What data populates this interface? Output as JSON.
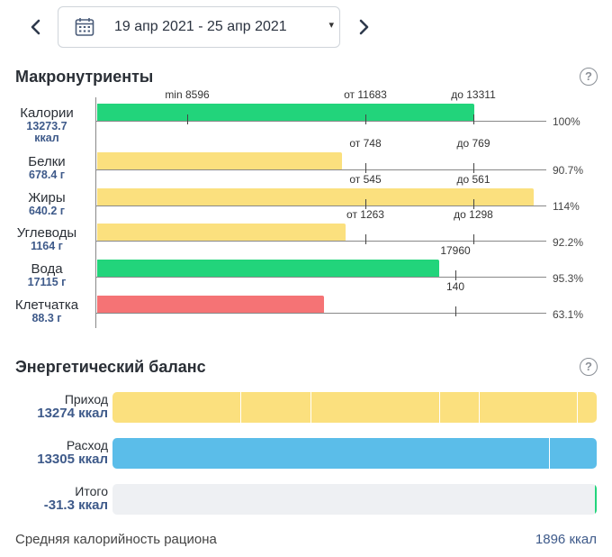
{
  "header": {
    "date_range": "19 апр 2021 - 25 апр 2021",
    "caret": "▾",
    "prev_icon": "chevron-left-icon",
    "next_icon": "chevron-right-icon",
    "calendar_icon": "calendar-icon"
  },
  "macros": {
    "title": "Макронутриенты",
    "help": "?",
    "rows": [
      {
        "name": "Калории",
        "value": "13273.7",
        "unit": "ккал",
        "percent": "100%",
        "color": "#22d47b",
        "fill": 0.837,
        "ticks": [
          {
            "label": "min 8596",
            "pos": 0.202
          },
          {
            "label": "от 11683",
            "pos": 0.598
          },
          {
            "label": "до 13311",
            "pos": 0.838
          }
        ]
      },
      {
        "name": "Белки",
        "value": "678.4 г",
        "percent": "90.7%",
        "color": "#fbe07e",
        "fill": 0.544,
        "ticks": [
          {
            "label": "от 748",
            "pos": 0.598
          },
          {
            "label": "до 769",
            "pos": 0.838
          }
        ]
      },
      {
        "name": "Жиры",
        "value": "640.2 г",
        "percent": "114%",
        "color": "#fbe07e",
        "fill": 0.97,
        "ticks": [
          {
            "label": "от 545",
            "pos": 0.598
          },
          {
            "label": "до 561",
            "pos": 0.838
          }
        ]
      },
      {
        "name": "Углеводы",
        "value": "1164 г",
        "percent": "92.2%",
        "color": "#fbe07e",
        "fill": 0.552,
        "ticks": [
          {
            "label": "от 1263",
            "pos": 0.598
          },
          {
            "label": "до 1298",
            "pos": 0.838
          }
        ]
      },
      {
        "name": "Вода",
        "value": "17115 г",
        "percent": "95.3%",
        "color": "#22d47b",
        "fill": 0.76,
        "ticks": [
          {
            "label": "17960",
            "pos": 0.797
          }
        ]
      },
      {
        "name": "Клетчатка",
        "value": "88.3 г",
        "percent": "63.1%",
        "color": "#f57375",
        "fill": 0.504,
        "ticks": [
          {
            "label": "140",
            "pos": 0.798
          }
        ]
      }
    ]
  },
  "balance": {
    "title": "Энергетический баланс",
    "help": "?",
    "income": {
      "name": "Приход",
      "value": "13274 ккал",
      "color": "#fbe07e"
    },
    "expense": {
      "name": "Расход",
      "value": "13305 ккал",
      "color": "#5bbde9"
    },
    "total": {
      "name": "Итого",
      "value": "-31.3 ккал",
      "color": "#eef0f3"
    }
  },
  "footer": {
    "label": "Средняя калорийность рациона",
    "value": "1896 ккал"
  }
}
